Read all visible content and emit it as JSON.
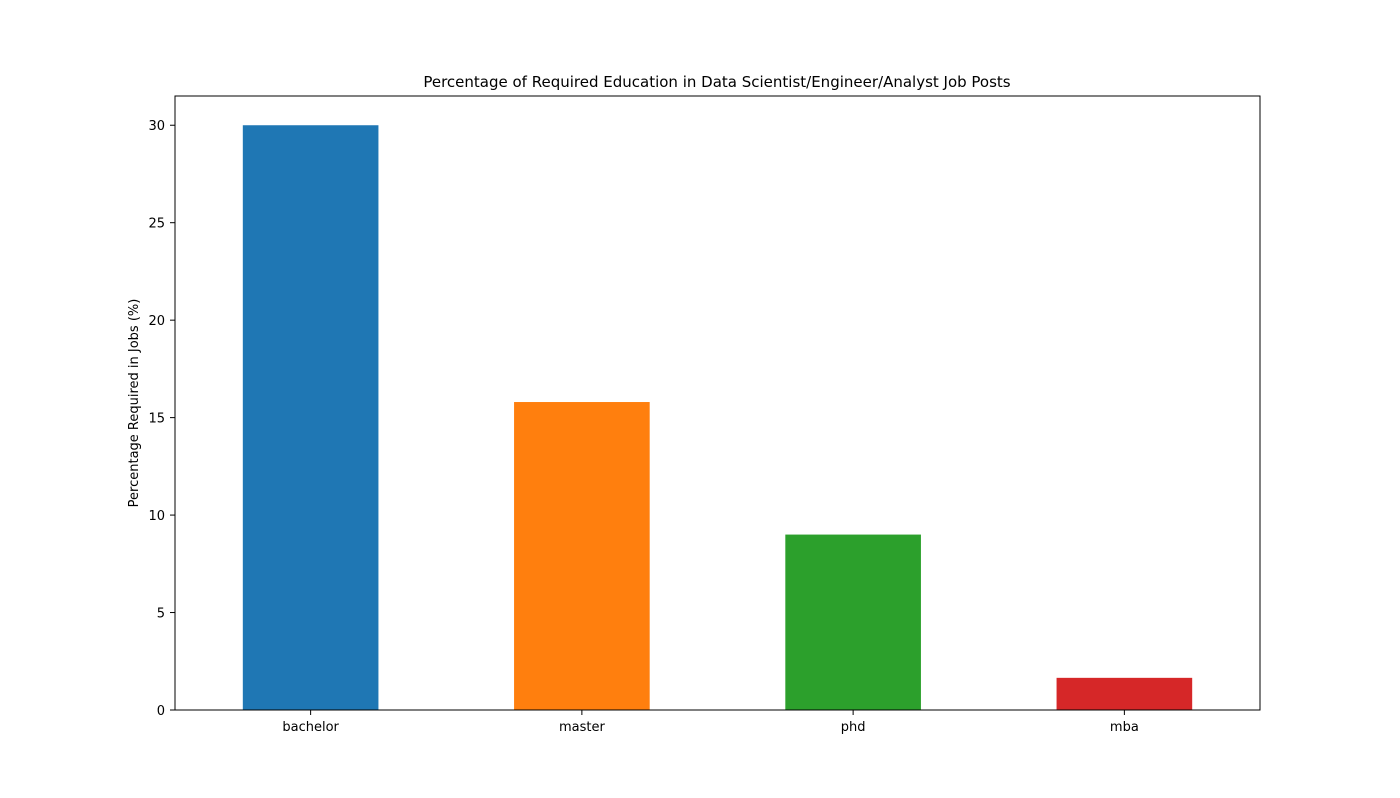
{
  "chart_data": {
    "type": "bar",
    "title": "Percentage of Required Education in Data Scientist/Engineer/Analyst Job Posts",
    "xlabel": "",
    "ylabel": "Percentage Required in Jobs (%)",
    "categories": [
      "bachelor",
      "master",
      "phd",
      "mba"
    ],
    "values": [
      30.0,
      15.8,
      9.0,
      1.65
    ],
    "colors": [
      "#1f77b4",
      "#ff7f0e",
      "#2ca02c",
      "#d62728"
    ],
    "ylim": [
      0,
      31.5
    ],
    "yticks": [
      0,
      5,
      10,
      15,
      20,
      25,
      30
    ],
    "grid": false,
    "legend": "none"
  }
}
